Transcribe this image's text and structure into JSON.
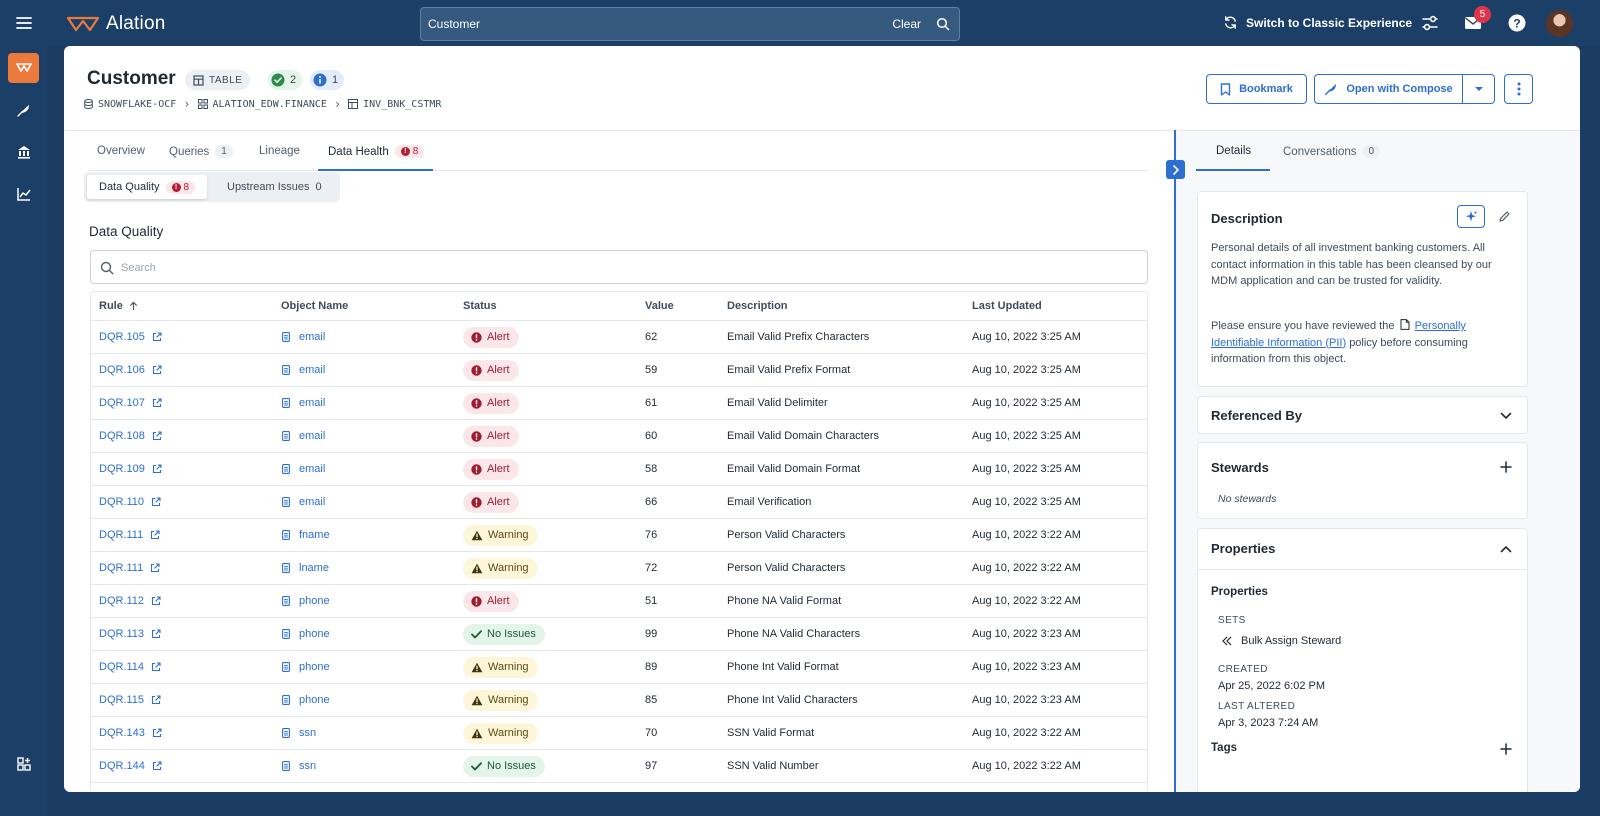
{
  "topbar": {
    "logo_text": "Alation",
    "search_value": "Customer",
    "search_clear": "Clear",
    "switch_label": "Switch to Classic Experience",
    "inbox_count": "5"
  },
  "object": {
    "title": "Customer",
    "type_label": "TABLE",
    "check_count": "2",
    "info_count": "1",
    "breadcrumb": [
      "SNOWFLAKE-OCF",
      "ALATION_EDW.FINANCE",
      "INV_BNK_CSTMR"
    ]
  },
  "actions": {
    "bookmark": "Bookmark",
    "compose": "Open with Compose"
  },
  "tabs": [
    {
      "label": "Overview",
      "count": ""
    },
    {
      "label": "Queries",
      "count": "1"
    },
    {
      "label": "Lineage",
      "count": ""
    },
    {
      "label": "Data Health",
      "count": "8"
    }
  ],
  "subtabs": {
    "dq_label": "Data Quality",
    "dq_count": "8",
    "up_label": "Upstream Issues",
    "up_count": "0"
  },
  "dq": {
    "title": "Data Quality",
    "search_placeholder": "Search",
    "columns": [
      "Rule",
      "Object Name",
      "Status",
      "Value",
      "Description",
      "Last Updated"
    ],
    "rows": [
      {
        "rule": "DQR.105",
        "object": "email",
        "status": "Alert",
        "value": "62",
        "description": "Email Valid Prefix Characters",
        "updated": "Aug 10, 2022 3:25 AM"
      },
      {
        "rule": "DQR.106",
        "object": "email",
        "status": "Alert",
        "value": "59",
        "description": "Email Valid Prefix Format",
        "updated": "Aug 10, 2022 3:25 AM"
      },
      {
        "rule": "DQR.107",
        "object": "email",
        "status": "Alert",
        "value": "61",
        "description": "Email Valid Delimiter",
        "updated": "Aug 10, 2022 3:25 AM"
      },
      {
        "rule": "DQR.108",
        "object": "email",
        "status": "Alert",
        "value": "60",
        "description": "Email Valid Domain Characters",
        "updated": "Aug 10, 2022 3:25 AM"
      },
      {
        "rule": "DQR.109",
        "object": "email",
        "status": "Alert",
        "value": "58",
        "description": "Email Valid Domain Format",
        "updated": "Aug 10, 2022 3:25 AM"
      },
      {
        "rule": "DQR.110",
        "object": "email",
        "status": "Alert",
        "value": "66",
        "description": "Email Verification",
        "updated": "Aug 10, 2022 3:25 AM"
      },
      {
        "rule": "DQR.111",
        "object": "fname",
        "status": "Warning",
        "value": "76",
        "description": "Person Valid Characters",
        "updated": "Aug 10, 2022 3:22 AM"
      },
      {
        "rule": "DQR.111",
        "object": "lname",
        "status": "Warning",
        "value": "72",
        "description": "Person Valid Characters",
        "updated": "Aug 10, 2022 3:22 AM"
      },
      {
        "rule": "DQR.112",
        "object": "phone",
        "status": "Alert",
        "value": "51",
        "description": "Phone NA Valid Format",
        "updated": "Aug 10, 2022 3:22 AM"
      },
      {
        "rule": "DQR.113",
        "object": "phone",
        "status": "No Issues",
        "value": "99",
        "description": "Phone NA Valid Characters",
        "updated": "Aug 10, 2022 3:23 AM"
      },
      {
        "rule": "DQR.114",
        "object": "phone",
        "status": "Warning",
        "value": "89",
        "description": "Phone Int Valid Format",
        "updated": "Aug 10, 2022 3:23 AM"
      },
      {
        "rule": "DQR.115",
        "object": "phone",
        "status": "Warning",
        "value": "85",
        "description": "Phone Int Valid Characters",
        "updated": "Aug 10, 2022 3:23 AM"
      },
      {
        "rule": "DQR.143",
        "object": "ssn",
        "status": "Warning",
        "value": "70",
        "description": "SSN Valid Format",
        "updated": "Aug 10, 2022 3:22 AM"
      },
      {
        "rule": "DQR.144",
        "object": "ssn",
        "status": "No Issues",
        "value": "97",
        "description": "SSN Valid Number",
        "updated": "Aug 10, 2022 3:22 AM"
      }
    ]
  },
  "right_panel": {
    "tabs": {
      "details": "Details",
      "conversations": "Conversations",
      "conversations_count": "0"
    },
    "description": {
      "title": "Description",
      "para1": "Personal details of all investment banking customers. All contact information in this table has been cleansed by our MDM application and can be trusted for validity.",
      "para2_pre": "Please ensure you have reviewed the",
      "para2_link": "Personally Identifiable Information (PII)",
      "para2_post": "policy before consuming information from this object."
    },
    "referenced_by": "Referenced By",
    "stewards": {
      "title": "Stewards",
      "empty": "No stewards"
    },
    "properties": {
      "title": "Properties",
      "sub_title": "Properties",
      "sets_label": "SETS",
      "sets_value": "Bulk Assign Steward",
      "created_label": "CREATED",
      "created_value": "Apr 25, 2022 6:02 PM",
      "altered_label": "LAST ALTERED",
      "altered_value": "Apr 3, 2023 7:24 AM",
      "tags_label": "Tags"
    }
  },
  "colors": {
    "nav_bg": "#1b3f67",
    "accent": "#2c6fd1",
    "active_rail": "#ec7a3d",
    "alert": "#b31d35",
    "warning": "#f2c94c",
    "ok": "#2f8a4d"
  }
}
